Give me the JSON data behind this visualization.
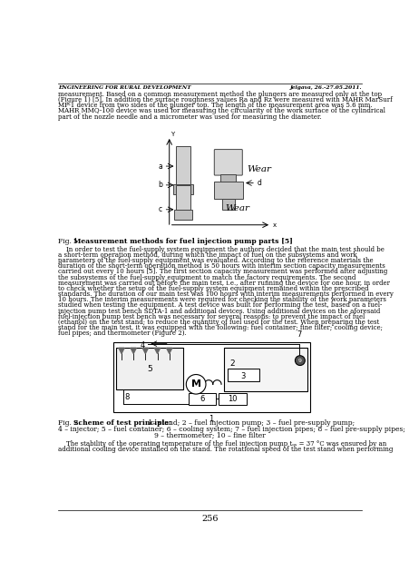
{
  "header_left": "ENGINEERING FOR RURAL DEVELOPMENT",
  "header_right": "Jelgava, 26.-27.05.2011.",
  "page_number": "256",
  "bg_color": "#ffffff",
  "text_color": "#000000"
}
